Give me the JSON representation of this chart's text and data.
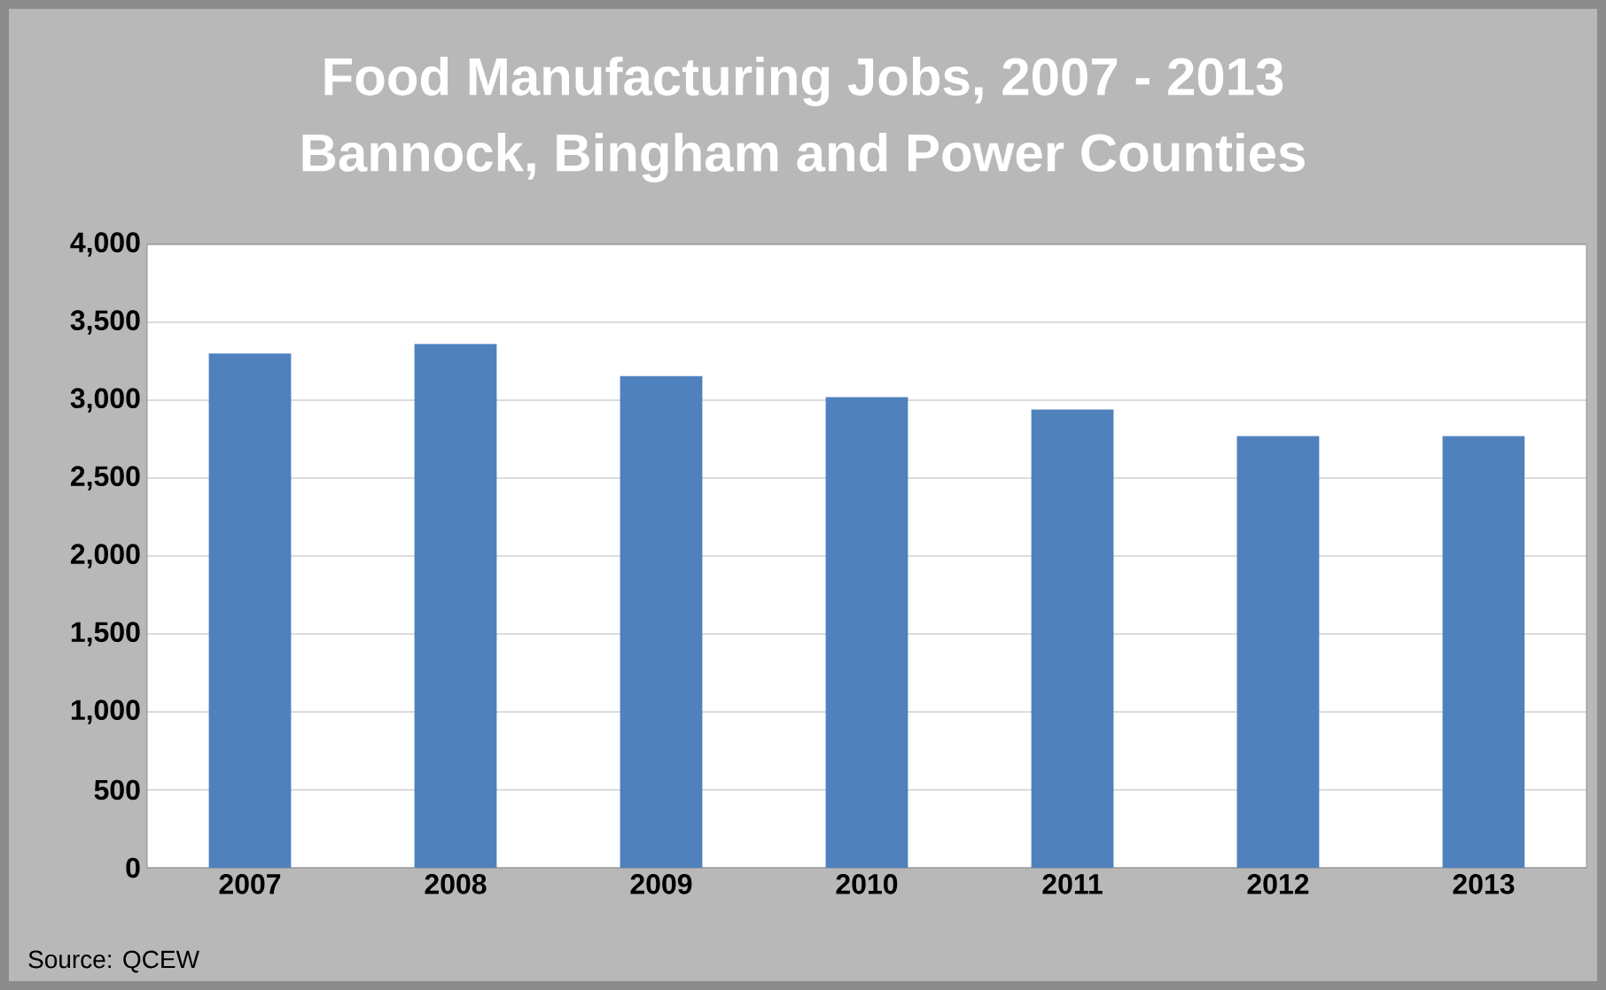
{
  "chart_data": {
    "type": "bar",
    "title": "Food Manufacturing Jobs, 2007 - 2013",
    "subtitle": "Bannock, Bingham and Power Counties",
    "categories": [
      "2007",
      "2008",
      "2009",
      "2010",
      "2011",
      "2012",
      "2013"
    ],
    "values": [
      3300,
      3360,
      3155,
      3020,
      2940,
      2770,
      2770
    ],
    "color": "#4f81bd",
    "ylim": [
      0,
      4000
    ],
    "yticks": [
      {
        "value": 0,
        "label": "0"
      },
      {
        "value": 500,
        "label": "500"
      },
      {
        "value": 1000,
        "label": "1,000"
      },
      {
        "value": 1500,
        "label": "1,500"
      },
      {
        "value": 2000,
        "label": "2,000"
      },
      {
        "value": 2500,
        "label": "2,500"
      },
      {
        "value": 3000,
        "label": "3,000"
      },
      {
        "value": 3500,
        "label": "3,500"
      },
      {
        "value": 4000,
        "label": "4,000"
      }
    ],
    "grid": "y",
    "annotations": [
      "Source: QCEW"
    ]
  }
}
